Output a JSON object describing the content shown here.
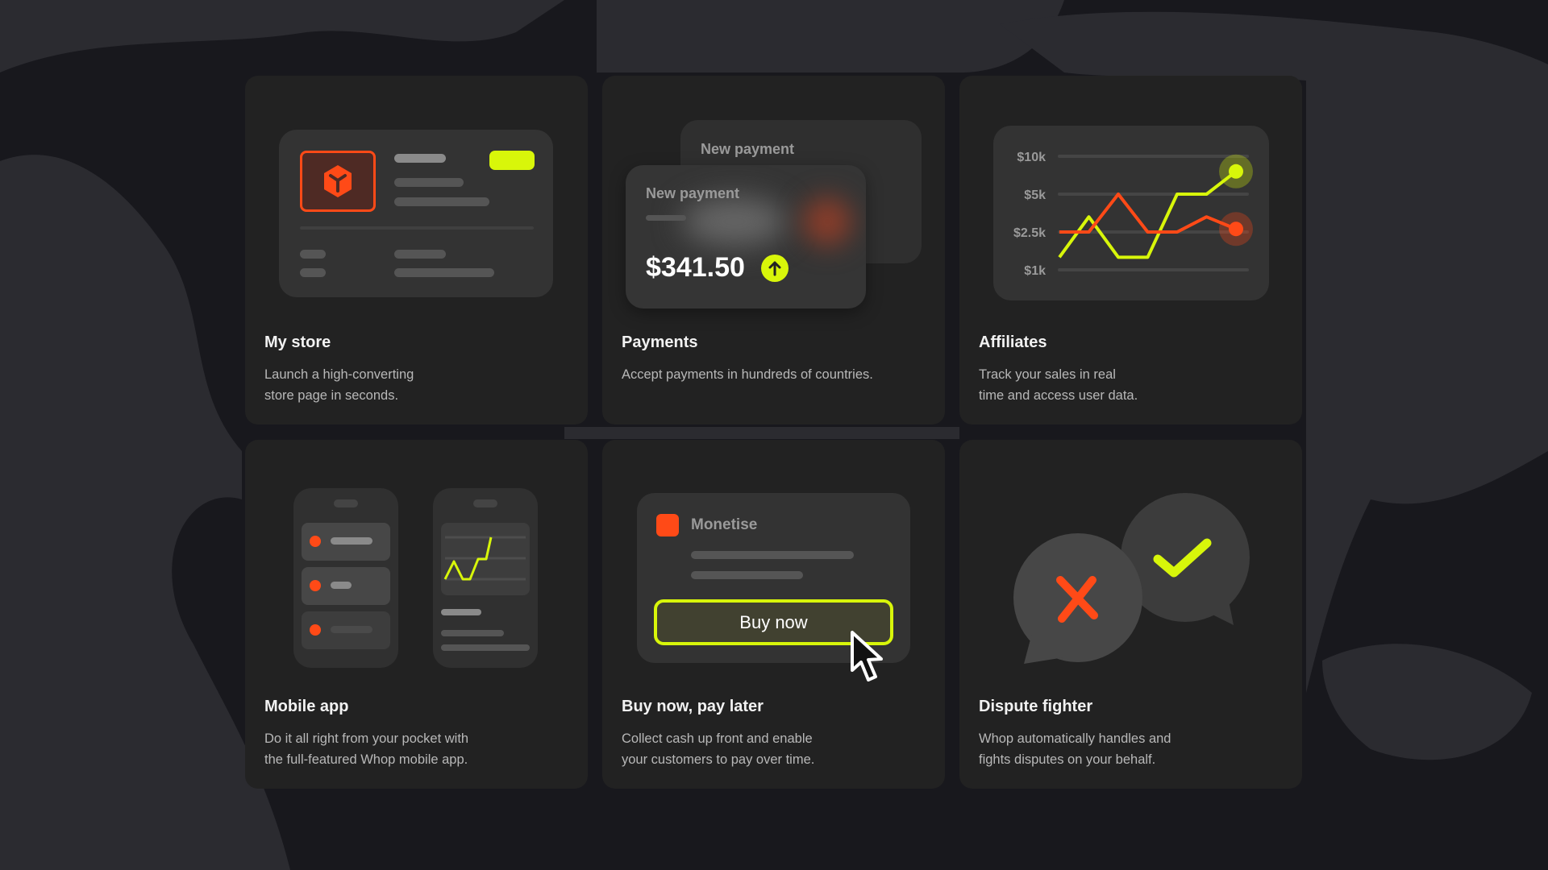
{
  "colors": {
    "accent_yellow": "#d8f60a",
    "accent_orange": "#ff4a17",
    "card": "#222222",
    "panel": "#333333",
    "background": "#18181d"
  },
  "cards": [
    {
      "title": "My store",
      "desc_line1": "Launch a high-converting",
      "desc_line2": "store page in seconds.",
      "icon": "cube-icon"
    },
    {
      "title": "Payments",
      "desc_line1": "Accept payments in hundreds of countries.",
      "desc_line2": "",
      "back_label": "New payment",
      "front_label": "New payment",
      "amount": "$341.50",
      "icon": "arrow-up-icon"
    },
    {
      "title": "Affiliates",
      "desc_line1": "Track your sales in real",
      "desc_line2": "time and access user data."
    },
    {
      "title": "Mobile app",
      "desc_line1": "Do it all right from your pocket with",
      "desc_line2": "the full-featured Whop mobile app."
    },
    {
      "title": "Buy now, pay later",
      "desc_line1": "Collect cash up front and enable",
      "desc_line2": "your customers to pay over time.",
      "monetise_label": "Monetise",
      "button_label": "Buy now"
    },
    {
      "title": "Dispute fighter",
      "desc_line1": "Whop automatically handles and",
      "desc_line2": "fights disputes on your behalf."
    }
  ],
  "chart_data": {
    "type": "line",
    "yticks": [
      "$10k",
      "$5k",
      "$2.5k",
      "$1k"
    ],
    "ytick_values": [
      10000,
      5000,
      2500,
      1000
    ],
    "grid": true,
    "series": [
      {
        "color": "#d8f60a",
        "values": [
          1500,
          3500,
          1500,
          1500,
          5000,
          5000,
          8000
        ]
      },
      {
        "color": "#ff4a17",
        "values": [
          2500,
          2500,
          5000,
          2500,
          2500,
          3500,
          2700
        ]
      }
    ]
  }
}
